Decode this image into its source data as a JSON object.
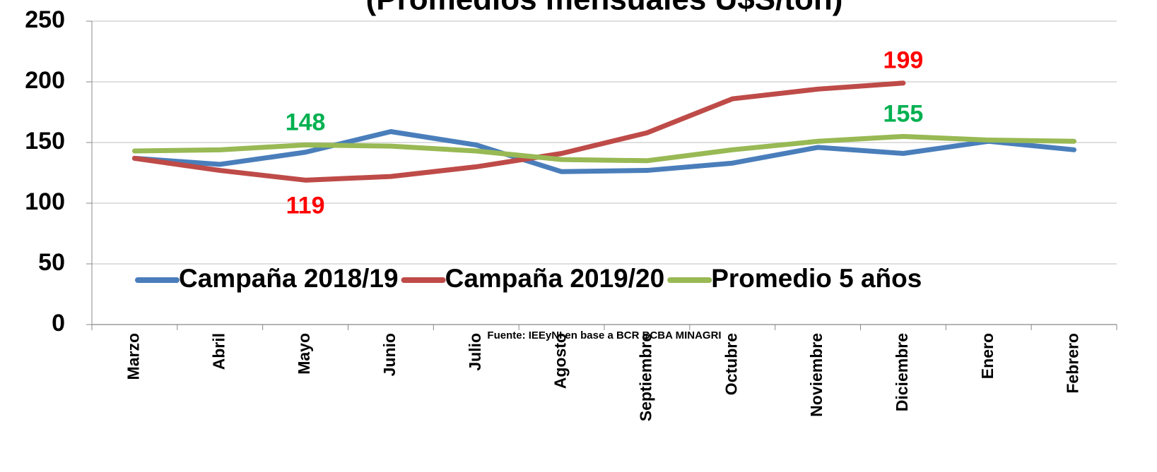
{
  "chart_data": {
    "type": "line",
    "title": "(Promedios mensuales U$S/ton)",
    "categories": [
      "Marzo",
      "Abril",
      "Mayo",
      "Junio",
      "Julio",
      "Agosto",
      "Septiembre",
      "Octubre",
      "Noviembre",
      "Diciembre",
      "Enero",
      "Febrero"
    ],
    "series": [
      {
        "name": "Campaña 2018/19",
        "color": "#4a7ebb",
        "values": [
          137,
          132,
          142,
          159,
          148,
          126,
          127,
          133,
          146,
          141,
          151,
          144
        ]
      },
      {
        "name": "Campaña 2019/20",
        "color": "#be4b48",
        "values": [
          137,
          127,
          119,
          122,
          130,
          141,
          158,
          186,
          194,
          199,
          null,
          null
        ],
        "value_labels": [
          null,
          null,
          "119",
          null,
          null,
          null,
          null,
          null,
          null,
          "199",
          null,
          null
        ],
        "label_color": "#ff0000"
      },
      {
        "name": "Promedio 5 años",
        "color": "#98b954",
        "values": [
          143,
          144,
          148,
          147,
          143,
          136,
          135,
          144,
          151,
          155,
          152,
          151
        ],
        "value_labels": [
          null,
          null,
          "148",
          null,
          null,
          null,
          null,
          null,
          null,
          "155",
          null,
          null
        ],
        "label_color": "#00b050"
      }
    ],
    "ylim": [
      0,
      250
    ],
    "yticks": [
      0,
      50,
      100,
      150,
      200,
      250
    ],
    "grid": true,
    "annotation": "Fuente: IEEyNI en base a BCR BCBA MINAGRI"
  }
}
